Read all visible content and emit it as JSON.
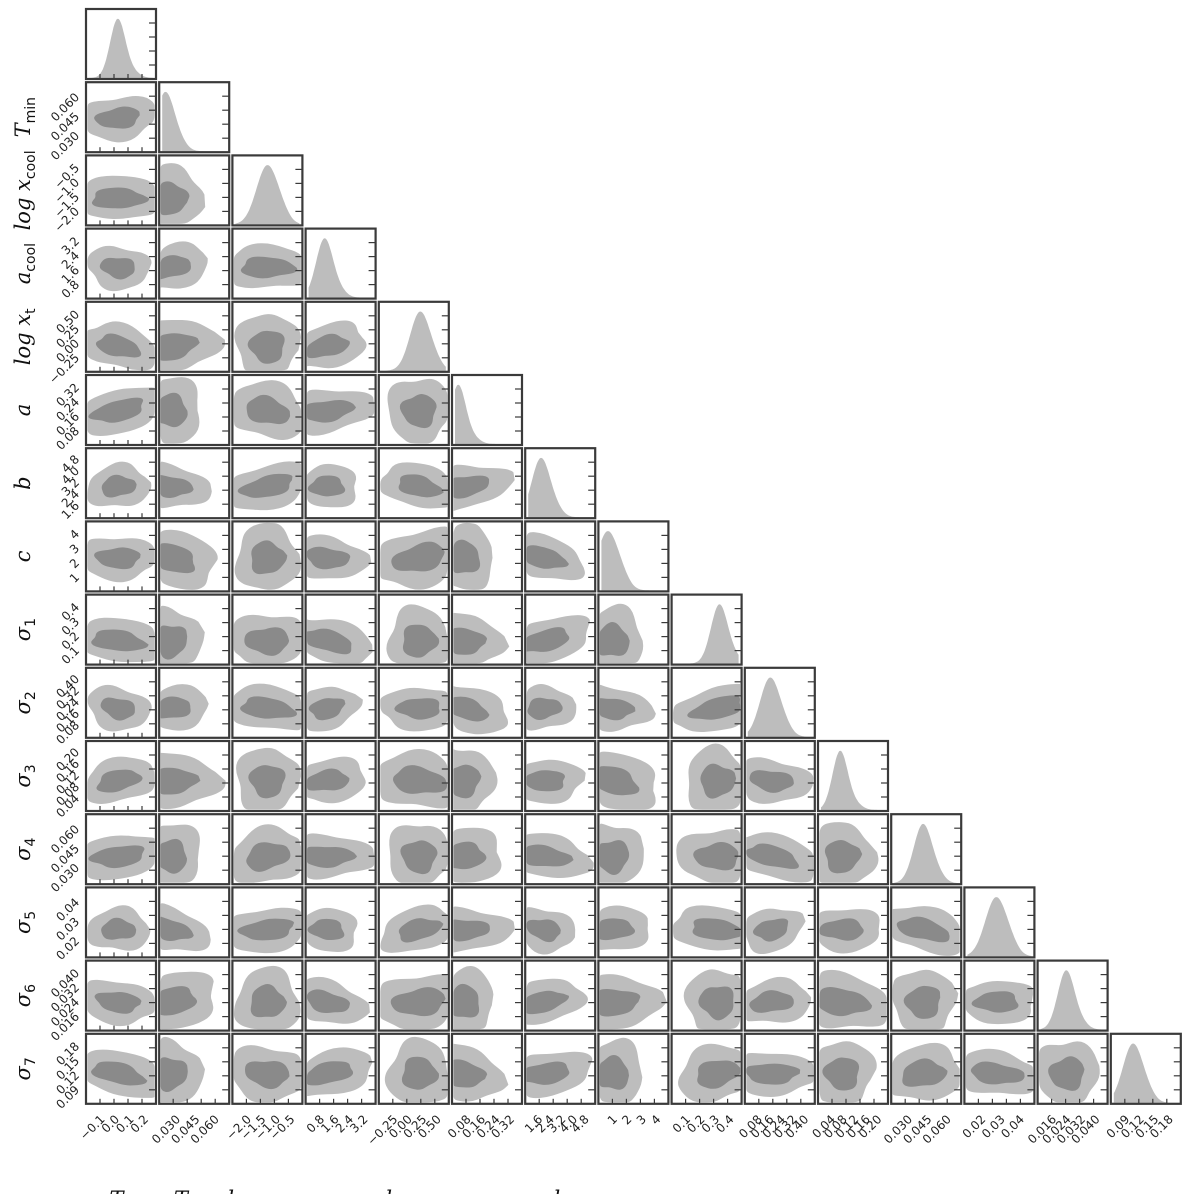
{
  "chart_data": {
    "type": "corner",
    "parameters": [
      {
        "key": "T0",
        "label": "T",
        "sub": "0",
        "ticks": [
          "−0.1",
          "0.0",
          "0.1",
          "0.2"
        ]
      },
      {
        "key": "Tmin",
        "label": "T",
        "sub": "min",
        "ticks": [
          "0.030",
          "0.045",
          "0.060"
        ]
      },
      {
        "key": "logxcool",
        "label": "log x",
        "sub": "cool",
        "ticks": [
          "−2.0",
          "−1.5",
          "−1.0",
          "−0.5"
        ]
      },
      {
        "key": "acool",
        "label": "a",
        "sub": "cool",
        "ticks": [
          "0.8",
          "1.6",
          "2.4",
          "3.2"
        ]
      },
      {
        "key": "logxt",
        "label": "log x",
        "sub": "t",
        "ticks": [
          "−0.25",
          "0.00",
          "0.25",
          "0.50"
        ]
      },
      {
        "key": "a",
        "label": "a",
        "sub": "",
        "ticks": [
          "0.08",
          "0.16",
          "0.24",
          "0.32"
        ]
      },
      {
        "key": "b",
        "label": "b",
        "sub": "",
        "ticks": [
          "1.6",
          "2.4",
          "3.2",
          "4.0",
          "4.8"
        ]
      },
      {
        "key": "c",
        "label": "c",
        "sub": "",
        "ticks": [
          "1",
          "2",
          "3",
          "4"
        ]
      },
      {
        "key": "sigma1",
        "label": "σ",
        "sub": "1",
        "ticks": [
          "0.1",
          "0.2",
          "0.3",
          "0.4"
        ]
      },
      {
        "key": "sigma2",
        "label": "σ",
        "sub": "2",
        "ticks": [
          "0.08",
          "0.16",
          "0.24",
          "0.32",
          "0.40"
        ]
      },
      {
        "key": "sigma3",
        "label": "σ",
        "sub": "3",
        "ticks": [
          "0.04",
          "0.08",
          "0.12",
          "0.16",
          "0.20"
        ]
      },
      {
        "key": "sigma4",
        "label": "σ",
        "sub": "4",
        "ticks": [
          "0.030",
          "0.045",
          "0.060"
        ]
      },
      {
        "key": "sigma5",
        "label": "σ",
        "sub": "5",
        "ticks": [
          "0.02",
          "0.03",
          "0.04"
        ]
      },
      {
        "key": "sigma6",
        "label": "σ",
        "sub": "6",
        "ticks": [
          "0.016",
          "0.024",
          "0.032",
          "0.040"
        ]
      },
      {
        "key": "sigma7",
        "label": "σ",
        "sub": "7",
        "ticks": [
          "0.09",
          "0.12",
          "0.15",
          "0.18"
        ]
      }
    ],
    "marginal_peaks": [
      0.45,
      0.05,
      0.5,
      0.25,
      0.6,
      0.05,
      0.2,
      0.1,
      0.7,
      0.35,
      0.3,
      0.45,
      0.45,
      0.4,
      0.3
    ],
    "confidence_levels": [
      "outer",
      "inner"
    ],
    "colors": {
      "outer": "#bdbdbd",
      "inner": "#8a8a8a",
      "frame": "#3a3a3a"
    }
  }
}
